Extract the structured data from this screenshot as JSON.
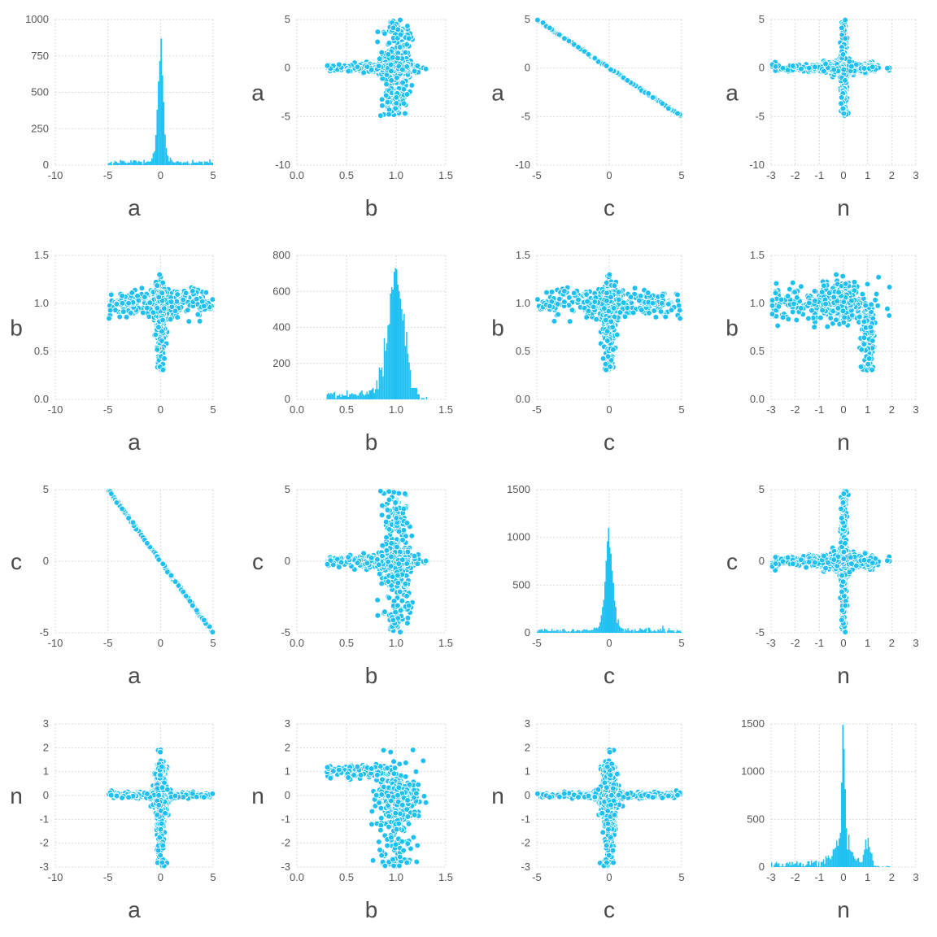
{
  "colors": {
    "marker": "#1ec0f2",
    "marker_edge": "#ffffff",
    "bar": "#1ec0f2",
    "grid": "#d9d9d9",
    "text": "#555555"
  },
  "chart_data": {
    "type": "scatter",
    "layout": "pair-plot matrix (4x4): histograms on diagonal, scatter off-diagonal",
    "variables": [
      "a",
      "b",
      "c",
      "n"
    ],
    "axes": {
      "a": {
        "lim": [
          -10,
          5
        ],
        "ticks": [
          -10,
          -5,
          0,
          5
        ]
      },
      "b": {
        "lim": [
          0,
          1.5
        ],
        "ticks": [
          0.0,
          0.5,
          1.0,
          1.5
        ]
      },
      "c": {
        "lim": [
          -5,
          5
        ],
        "ticks": [
          -5,
          0,
          5
        ]
      },
      "n": {
        "lim": [
          -3,
          3
        ],
        "ticks": [
          -3,
          -2,
          -1,
          0,
          1,
          2,
          3
        ]
      }
    },
    "row_axes": {
      "a": {
        "lim": [
          -10,
          5
        ],
        "ticks": [
          -10,
          -5,
          0,
          5
        ]
      },
      "b": {
        "lim": [
          0,
          1.5
        ],
        "ticks": [
          0.0,
          0.5,
          1.0,
          1.5
        ]
      },
      "c": {
        "lim": [
          -5,
          5
        ],
        "ticks": [
          -5,
          0,
          5
        ]
      },
      "n": {
        "lim": [
          -3,
          3
        ],
        "ticks": [
          -3,
          -2,
          -1,
          0,
          1,
          2,
          3
        ]
      }
    },
    "histograms": {
      "a": {
        "ylim": [
          0,
          1000
        ],
        "yticks": [
          0,
          250,
          500,
          750,
          1000
        ],
        "peak": 870,
        "mode": 0.0,
        "shape": "sharp spike at 0 with small side lobes near -4.5 and 4"
      },
      "b": {
        "ylim": [
          0,
          800
        ],
        "yticks": [
          0,
          200,
          400,
          600,
          800
        ],
        "peak": 730,
        "mode": 1.0,
        "shape": "sharp peak at 1.0, long thin left tail to 0.3"
      },
      "c": {
        "ylim": [
          0,
          1500
        ],
        "yticks": [
          0,
          500,
          1000,
          1500
        ],
        "peak": 1100,
        "mode": 0.0,
        "shape": "sharp spike at 0 with side bumps near -4 and 4.7"
      },
      "n": {
        "ylim": [
          0,
          1500
        ],
        "yticks": [
          0,
          500,
          1000,
          1500
        ],
        "peak": 1490,
        "mode": 0.0,
        "shape": "very sharp spike at 0, small bump near 1, long tail to -3"
      }
    },
    "relationships": {
      "a_vs_c": "c = -a (perfect negative line from (-5,5) to (5,-5))",
      "a_vs_b": "cross: b near 1 spanning a -5..5; vertical arm at a~0 for b 0.3..1.3",
      "a_vs_n": "cross: horizontal arm n~0 for a -5..5; vertical arm at a~0 for n -3..2",
      "b_vs_c": "cross: c near 0 horizontal arm for b 0.3..1.3; vertical band at b~1 for c -5..5",
      "b_vs_n": "wedge: n~1 at low b, fanning to n -3..2 at b~1",
      "c_vs_n": "cross: horizontal arm n~0 for c -5..5; vertical arm at c~0 for n -3..2"
    }
  },
  "panels": [
    {
      "id": "a-a",
      "xlabel": "a",
      "ylabel": ""
    },
    {
      "id": "a-b",
      "xlabel": "b",
      "ylabel": "a"
    },
    {
      "id": "a-c",
      "xlabel": "c",
      "ylabel": "a"
    },
    {
      "id": "a-n",
      "xlabel": "n",
      "ylabel": "a"
    },
    {
      "id": "b-a",
      "xlabel": "a",
      "ylabel": "b"
    },
    {
      "id": "b-b",
      "xlabel": "b",
      "ylabel": ""
    },
    {
      "id": "b-c",
      "xlabel": "c",
      "ylabel": "b"
    },
    {
      "id": "b-n",
      "xlabel": "n",
      "ylabel": "b"
    },
    {
      "id": "c-a",
      "xlabel": "a",
      "ylabel": "c"
    },
    {
      "id": "c-b",
      "xlabel": "b",
      "ylabel": "c"
    },
    {
      "id": "c-c",
      "xlabel": "c",
      "ylabel": ""
    },
    {
      "id": "c-n",
      "xlabel": "n",
      "ylabel": "c"
    },
    {
      "id": "n-a",
      "xlabel": "a",
      "ylabel": "n"
    },
    {
      "id": "n-b",
      "xlabel": "b",
      "ylabel": "n"
    },
    {
      "id": "n-c",
      "xlabel": "c",
      "ylabel": "n"
    },
    {
      "id": "n-n",
      "xlabel": "n",
      "ylabel": ""
    }
  ]
}
